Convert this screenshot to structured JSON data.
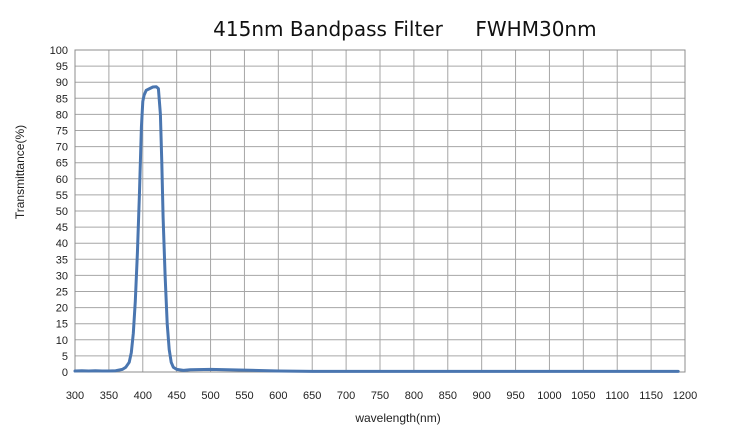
{
  "chart_data": {
    "type": "line",
    "title": "415nm Bandpass Filter",
    "subtitle": "FWHM30nm",
    "xlabel": "wavelength(nm)",
    "ylabel": "Transmittance(%)",
    "xlim": [
      300,
      1200
    ],
    "ylim": [
      0,
      100
    ],
    "x_tick_step": 50,
    "y_tick_step": 5,
    "grid": true,
    "line_color": "#4a76b0",
    "series": [
      {
        "x": [
          300,
          310,
          320,
          330,
          340,
          350,
          360,
          370,
          375,
          380,
          383,
          386,
          389,
          392,
          395,
          398,
          400,
          402,
          405,
          410,
          415,
          420,
          423,
          426,
          428,
          430,
          433,
          436,
          439,
          442,
          445,
          450,
          460,
          470,
          500,
          550,
          600,
          650,
          700,
          800,
          900,
          1000,
          1100,
          1190
        ],
        "y": [
          0.3,
          0.4,
          0.3,
          0.4,
          0.3,
          0.3,
          0.4,
          0.8,
          1.5,
          3,
          6,
          12,
          22,
          37,
          55,
          76,
          84,
          86,
          87.5,
          88,
          88.5,
          88.6,
          88,
          80,
          65,
          48,
          30,
          15,
          7,
          3,
          1.5,
          0.8,
          0.5,
          0.7,
          0.8,
          0.6,
          0.3,
          0.2,
          0.2,
          0.2,
          0.2,
          0.2,
          0.2,
          0.2
        ]
      }
    ]
  }
}
